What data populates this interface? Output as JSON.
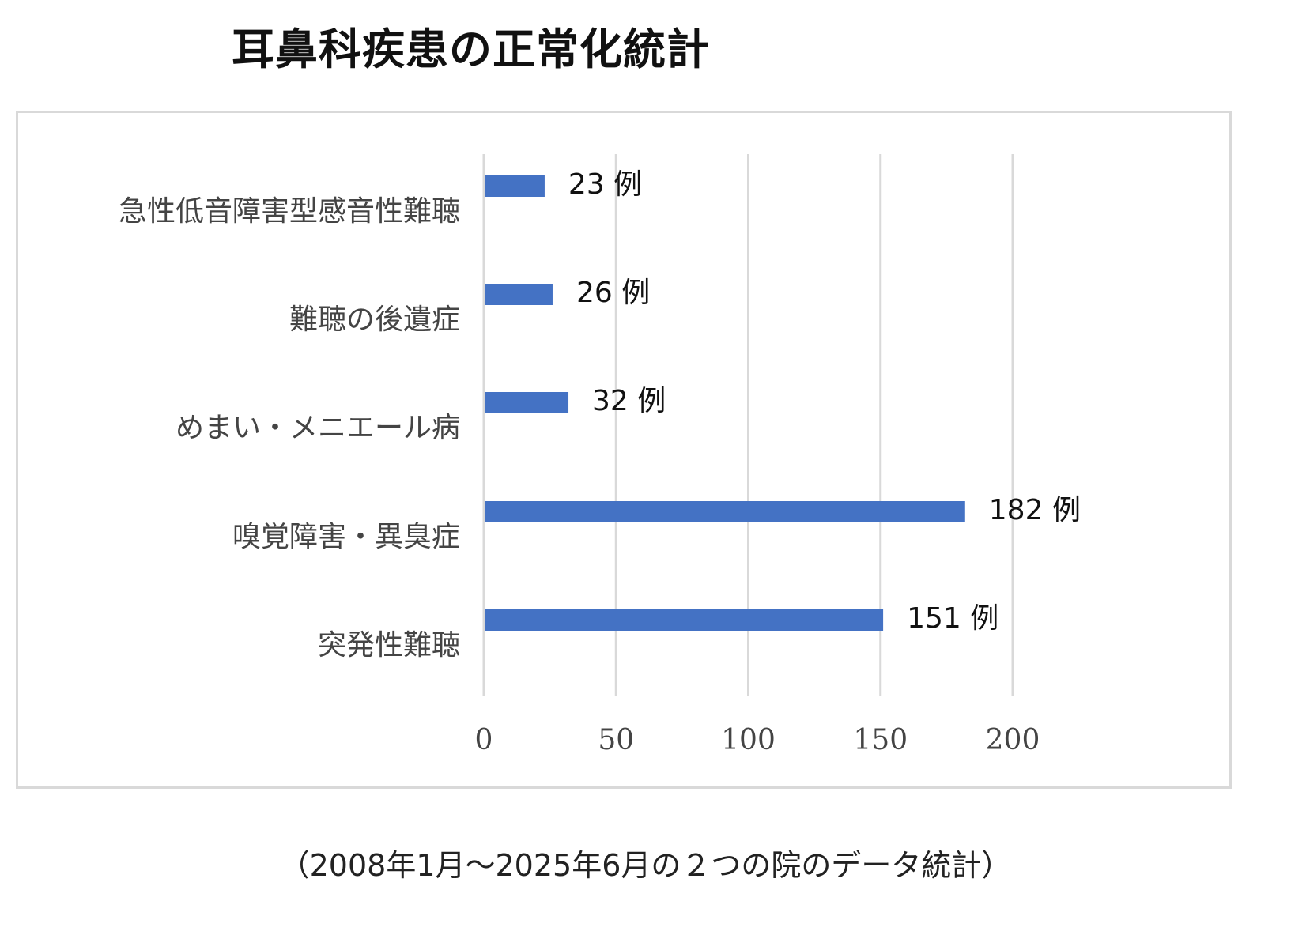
{
  "chart_data": {
    "type": "bar",
    "orientation": "horizontal",
    "title": "耳鼻科疾患の正常化統計",
    "footnote": "（2008年1月〜2025年6月の２つの院のデータ統計）",
    "categories": [
      "急性低音障害型感音性難聴",
      "難聴の後遺症",
      "めまい・メニエール病",
      "嗅覚障害・異臭症",
      "突発性難聴"
    ],
    "values": [
      23,
      26,
      32,
      182,
      151
    ],
    "data_labels": [
      "23 例",
      "26 例",
      "32 例",
      "182 例",
      "151 例"
    ],
    "xticks": [
      "0",
      "50",
      "100",
      "150",
      "200"
    ],
    "xlim": [
      0,
      200
    ],
    "grid": true,
    "bar_color": "#4472c4",
    "grid_color": "#d9d9d9"
  }
}
